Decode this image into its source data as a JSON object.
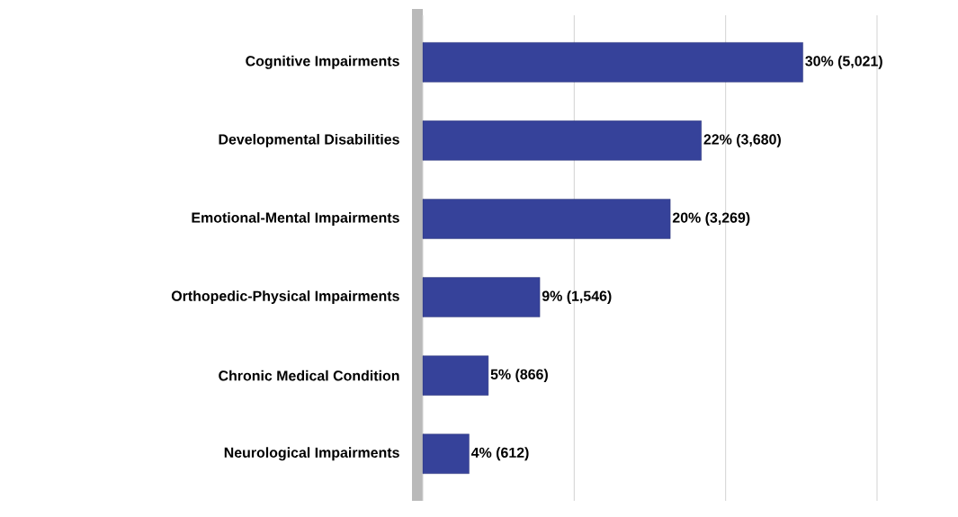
{
  "chart_data": {
    "type": "bar",
    "orientation": "horizontal",
    "categories": [
      "Cognitive Impairments",
      "Developmental Disabilities",
      "Emotional-Mental Impairments",
      "Orthopedic-Physical Impairments",
      "Chronic Medical Condition",
      "Neurological Impairments"
    ],
    "values": [
      5021,
      3680,
      3269,
      1546,
      866,
      612
    ],
    "value_labels": [
      "30% (5,021)",
      "22% (3,680)",
      "20% (3,269)",
      "9% (1,546)",
      "5% (866)",
      "4% (612)"
    ],
    "color": "#36429a",
    "xlim": [
      0,
      6000
    ],
    "xticks": [
      {
        "value": 0,
        "label": null
      },
      {
        "value": 2000,
        "label": null
      },
      {
        "value": 4000,
        "label": null
      },
      {
        "value": 6000,
        "label": null
      }
    ],
    "tick_labels": "y",
    "grid": "x"
  }
}
